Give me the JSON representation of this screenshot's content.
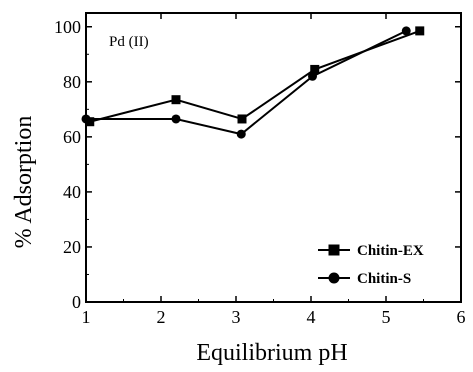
{
  "chart_data": {
    "type": "line",
    "xlabel": "Equilibrium pH",
    "ylabel": "% Adsorption",
    "xlim": [
      1,
      6
    ],
    "ylim": [
      0,
      105
    ],
    "xticks": [
      1,
      2,
      3,
      4,
      5,
      6
    ],
    "xtick_labels": [
      "1",
      "2",
      "3",
      "4",
      "5",
      "6"
    ],
    "yticks": [
      0,
      20,
      40,
      60,
      80,
      100
    ],
    "ytick_labels": [
      "0",
      "20",
      "40",
      "60",
      "80",
      "100"
    ],
    "grid": false,
    "legend_position": "bottom-right",
    "annotation": "Pd (II)",
    "series": [
      {
        "name": "Chitin-EX",
        "marker": "square",
        "color": "#000000",
        "x": [
          1.05,
          2.2,
          3.08,
          4.05,
          5.45
        ],
        "y": [
          65.5,
          73.5,
          66.5,
          84.5,
          98.5
        ]
      },
      {
        "name": "Chitin-S",
        "marker": "circle",
        "color": "#000000",
        "x": [
          1.0,
          2.2,
          3.07,
          4.02,
          5.27
        ],
        "y": [
          66.5,
          66.5,
          61.0,
          82.0,
          98.5
        ]
      }
    ]
  }
}
